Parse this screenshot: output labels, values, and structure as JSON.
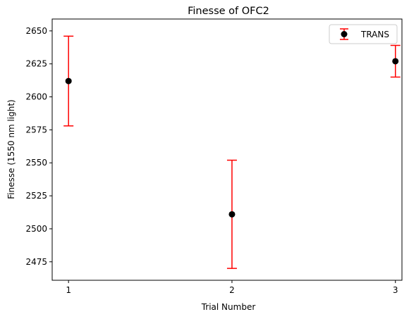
{
  "chart_data": {
    "type": "scatter",
    "title": "Finesse of OFC2",
    "xlabel": "Trial Number",
    "ylabel": "Finesse (1550 nm light)",
    "x": [
      1,
      2,
      3
    ],
    "xticks": [
      "1",
      "2",
      "3"
    ],
    "xlim": [
      0.9,
      3.04
    ],
    "yticks": [
      "2475",
      "2500",
      "2525",
      "2550",
      "2575",
      "2600",
      "2625",
      "2650"
    ],
    "ylim": [
      2461,
      2659
    ],
    "grid": false,
    "legend_position": "top-right",
    "series": [
      {
        "name": "TRANS",
        "values": [
          2612,
          2511,
          2627
        ],
        "error_low": [
          2578,
          2470,
          2615
        ],
        "error_high": [
          2646,
          2552,
          2639
        ],
        "marker_color": "#000000",
        "error_color": "#ff0000"
      }
    ]
  }
}
